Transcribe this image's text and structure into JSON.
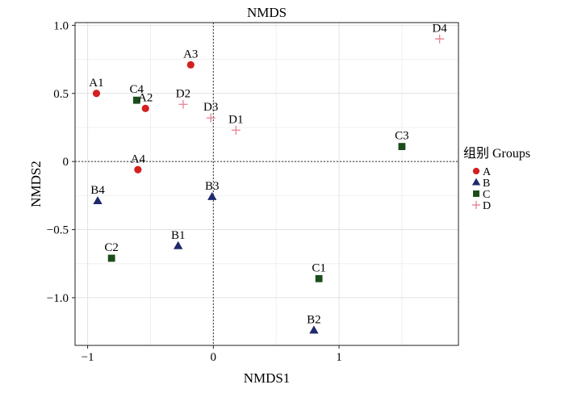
{
  "chart_data": {
    "type": "scatter",
    "title": "NMDS",
    "xlabel": "NMDS1",
    "ylabel": "NMDS2",
    "xlim": [
      -1.1,
      1.95
    ],
    "ylim": [
      -1.35,
      1.02
    ],
    "x_ticks": [
      -1,
      0,
      1
    ],
    "x_tick_labels": [
      "−1",
      "0",
      "1"
    ],
    "y_ticks": [
      -1.0,
      -0.5,
      0,
      0.5,
      1.0
    ],
    "y_tick_labels": [
      "−1.0",
      "−0.5",
      "0",
      "0.5",
      "1.0"
    ],
    "grid": true,
    "reference_lines": {
      "x": 0,
      "y": 0,
      "style": "dotted"
    },
    "legend": {
      "title": "组别 Groups",
      "position": "right",
      "entries": [
        "A",
        "B",
        "C",
        "D"
      ]
    },
    "series": [
      {
        "name": "A",
        "marker": "circle",
        "color": "#d32121",
        "points": [
          {
            "label": "A1",
            "x": -0.93,
            "y": 0.5
          },
          {
            "label": "A2",
            "x": -0.54,
            "y": 0.39
          },
          {
            "label": "A3",
            "x": -0.18,
            "y": 0.71
          },
          {
            "label": "A4",
            "x": -0.6,
            "y": -0.06
          }
        ]
      },
      {
        "name": "B",
        "marker": "triangle",
        "color": "#1f2a6b",
        "points": [
          {
            "label": "B1",
            "x": -0.28,
            "y": -0.62
          },
          {
            "label": "B2",
            "x": 0.8,
            "y": -1.24
          },
          {
            "label": "B3",
            "x": -0.01,
            "y": -0.26
          },
          {
            "label": "B4",
            "x": -0.92,
            "y": -0.29
          }
        ]
      },
      {
        "name": "C",
        "marker": "square",
        "color": "#1b4d1b",
        "points": [
          {
            "label": "C1",
            "x": 0.84,
            "y": -0.86
          },
          {
            "label": "C2",
            "x": -0.81,
            "y": -0.71
          },
          {
            "label": "C3",
            "x": 1.5,
            "y": 0.11
          },
          {
            "label": "C4",
            "x": -0.61,
            "y": 0.45
          }
        ]
      },
      {
        "name": "D",
        "marker": "plus",
        "color": "#e8899a",
        "points": [
          {
            "label": "D1",
            "x": 0.18,
            "y": 0.23
          },
          {
            "label": "D2",
            "x": -0.24,
            "y": 0.42
          },
          {
            "label": "D3",
            "x": -0.02,
            "y": 0.32
          },
          {
            "label": "D4",
            "x": 1.8,
            "y": 0.9
          }
        ]
      }
    ]
  }
}
